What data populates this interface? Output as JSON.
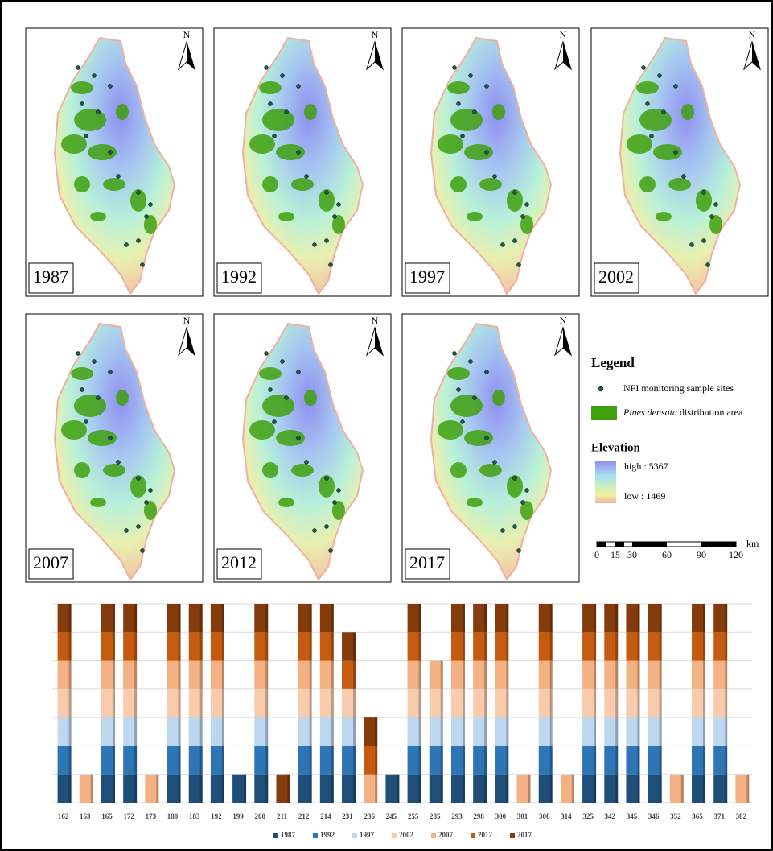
{
  "maps": {
    "north": "N",
    "panels": [
      "1987",
      "1992",
      "1997",
      "2002",
      "2007",
      "2012",
      "2017"
    ],
    "legend": {
      "title": "Legend",
      "sites": "NFI monitoring sample sites",
      "species_name": "Pines densata",
      "area_suffix": "distribution area",
      "elevation_title": "Elevation",
      "high": "high : 5367",
      "low": "low : 1469"
    },
    "scale": {
      "ticks": [
        "0",
        "15",
        "30",
        "60",
        "90",
        "120"
      ],
      "unit": "km"
    }
  },
  "chart_data": {
    "type": "bar",
    "stacked": true,
    "categories": [
      "162",
      "163",
      "165",
      "172",
      "173",
      "180",
      "183",
      "192",
      "199",
      "200",
      "211",
      "212",
      "214",
      "231",
      "236",
      "245",
      "255",
      "285",
      "293",
      "298",
      "300",
      "301",
      "306",
      "314",
      "325",
      "342",
      "345",
      "346",
      "352",
      "365",
      "371",
      "382"
    ],
    "series": [
      {
        "name": "1987",
        "color": "#1f4e79",
        "values": [
          1,
          0,
          1,
          1,
          0,
          1,
          1,
          1,
          1,
          1,
          0,
          1,
          1,
          1,
          0,
          1,
          1,
          1,
          1,
          1,
          1,
          0,
          1,
          0,
          1,
          1,
          1,
          1,
          0,
          1,
          1,
          0
        ]
      },
      {
        "name": "1992",
        "color": "#2e75b6",
        "values": [
          1,
          0,
          1,
          1,
          0,
          1,
          1,
          1,
          0,
          1,
          0,
          1,
          1,
          1,
          0,
          0,
          1,
          1,
          1,
          1,
          1,
          0,
          1,
          0,
          1,
          1,
          1,
          1,
          0,
          1,
          1,
          0
        ]
      },
      {
        "name": "1997",
        "color": "#bdd7ee",
        "values": [
          1,
          0,
          1,
          1,
          0,
          1,
          1,
          1,
          0,
          1,
          0,
          1,
          1,
          1,
          0,
          0,
          1,
          1,
          1,
          1,
          1,
          0,
          1,
          0,
          1,
          1,
          1,
          1,
          0,
          1,
          1,
          0
        ]
      },
      {
        "name": "2002",
        "color": "#f8cbad",
        "values": [
          1,
          0,
          1,
          1,
          0,
          1,
          1,
          1,
          0,
          1,
          0,
          1,
          1,
          1,
          0,
          0,
          1,
          1,
          1,
          1,
          1,
          0,
          1,
          0,
          1,
          1,
          1,
          1,
          0,
          1,
          1,
          0
        ]
      },
      {
        "name": "2007",
        "color": "#f4b183",
        "values": [
          1,
          1,
          1,
          1,
          1,
          1,
          1,
          1,
          0,
          1,
          0,
          1,
          1,
          0,
          1,
          0,
          1,
          1,
          1,
          1,
          1,
          1,
          1,
          1,
          1,
          1,
          1,
          1,
          1,
          1,
          1,
          1
        ]
      },
      {
        "name": "2012",
        "color": "#c55a11",
        "values": [
          1,
          0,
          1,
          1,
          0,
          1,
          1,
          1,
          0,
          1,
          0,
          1,
          1,
          1,
          1,
          0,
          1,
          0,
          1,
          1,
          1,
          0,
          1,
          0,
          1,
          1,
          1,
          1,
          0,
          1,
          1,
          0
        ]
      },
      {
        "name": "2017",
        "color": "#843c0c",
        "values": [
          1,
          0,
          1,
          1,
          0,
          1,
          1,
          1,
          0,
          1,
          1,
          1,
          1,
          1,
          1,
          0,
          1,
          0,
          1,
          1,
          1,
          0,
          1,
          0,
          1,
          1,
          1,
          1,
          0,
          1,
          1,
          0
        ]
      }
    ],
    "ylim": [
      0,
      7
    ],
    "yticks": [
      0,
      1,
      2,
      3,
      4,
      5,
      6,
      7
    ],
    "grid": true,
    "legend": "bottom"
  }
}
